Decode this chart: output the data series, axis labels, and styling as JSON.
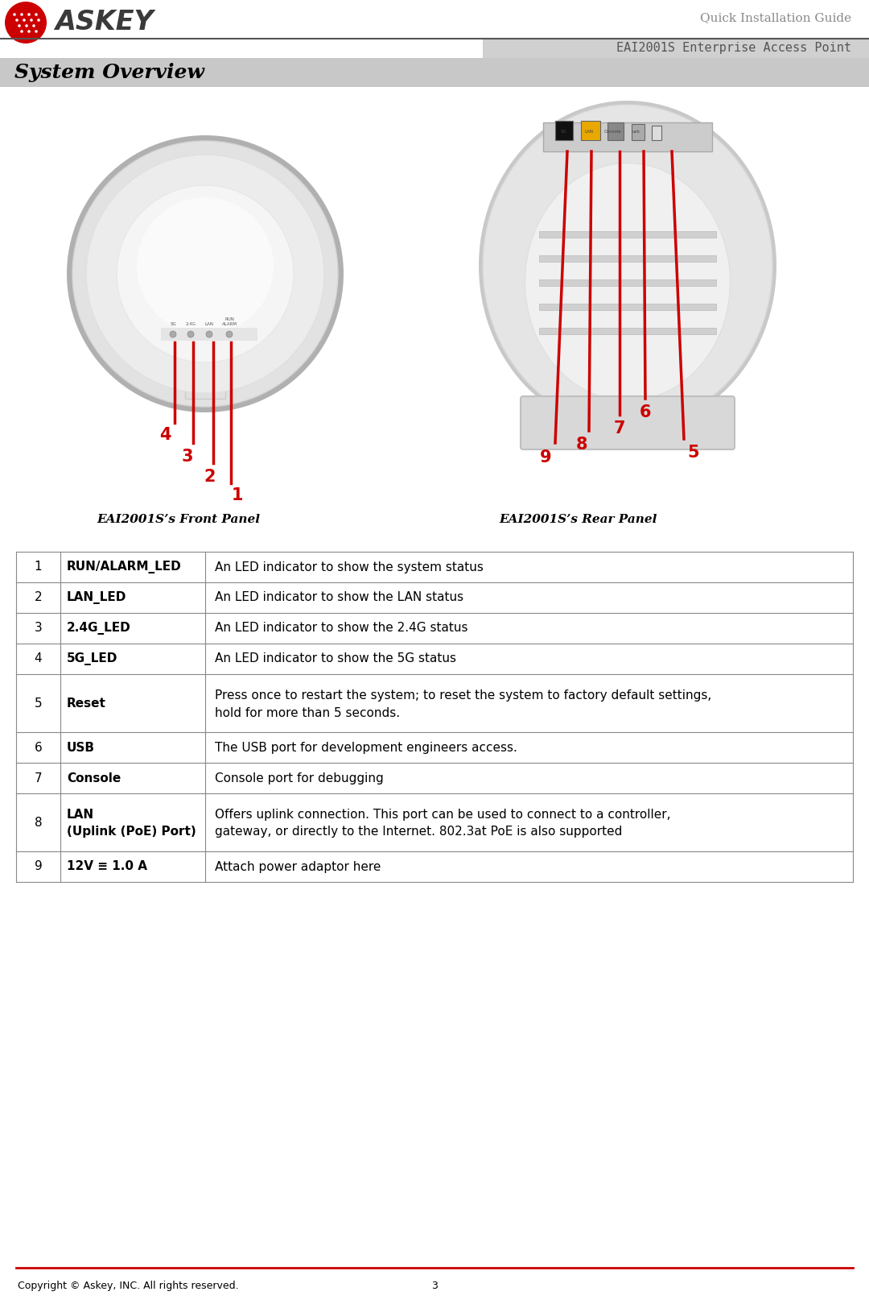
{
  "title_quick": "Quick Installation Guide",
  "title_product": "EAI2001S Enterprise Access Point",
  "section_title": "System Overview",
  "front_panel_label": "EAI2001S’s Front Panel",
  "rear_panel_label": "EAI2001S’s Rear Panel",
  "table_rows": [
    {
      "num": "1",
      "name": "RUN/ALARM_LED",
      "desc": "An LED indicator to show the system status",
      "name2": "",
      "desc2": ""
    },
    {
      "num": "2",
      "name": "LAN_LED",
      "desc": "An LED indicator to show the LAN status",
      "name2": "",
      "desc2": ""
    },
    {
      "num": "3",
      "name": "2.4G_LED",
      "desc": "An LED indicator to show the 2.4G status",
      "name2": "",
      "desc2": ""
    },
    {
      "num": "4",
      "name": "5G_LED",
      "desc": "An LED indicator to show the 5G status",
      "name2": "",
      "desc2": ""
    },
    {
      "num": "5",
      "name": "Reset",
      "desc": "Press once to restart the system; to reset the system to factory default settings,",
      "name2": "",
      "desc2": "hold for more than 5 seconds."
    },
    {
      "num": "6",
      "name": "USB",
      "desc": "The USB port for development engineers access.",
      "name2": "",
      "desc2": ""
    },
    {
      "num": "7",
      "name": "Console",
      "desc": "Console port for debugging",
      "name2": "",
      "desc2": ""
    },
    {
      "num": "8",
      "name": "LAN",
      "desc": "Offers uplink connection. This port can be used to connect to a controller,",
      "name2": "(Uplink (PoE) Port)",
      "desc2": "gateway, or directly to the Internet. 802.3at PoE is also supported"
    },
    {
      "num": "9",
      "name": "12V ≡ 1.0 A",
      "desc": "Attach power adaptor here",
      "name2": "",
      "desc2": ""
    }
  ],
  "copyright_text": "Copyright © Askey, INC. All rights reserved.",
  "page_num": "3",
  "bg_color": "#ffffff",
  "header_line_color": "#555555",
  "section_bg_color": "#c8c8c8",
  "red_color": "#cc0000",
  "table_border_color": "#888888",
  "quick_install_color": "#888888",
  "product_text_color": "#555555"
}
